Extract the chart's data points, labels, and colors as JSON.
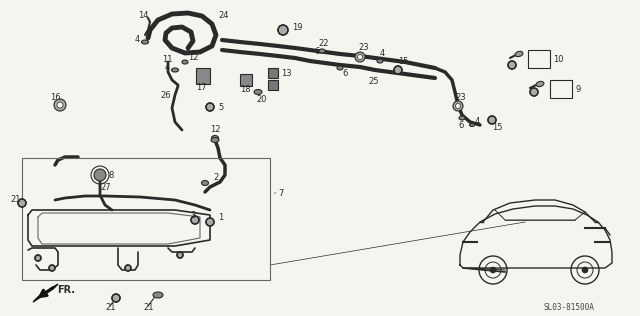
{
  "bg_color": "#f5f5f0",
  "diagram_code": "SL03-81500A",
  "line_color": "#2a2a2a",
  "gray": "#888888",
  "light_gray": "#cccccc"
}
